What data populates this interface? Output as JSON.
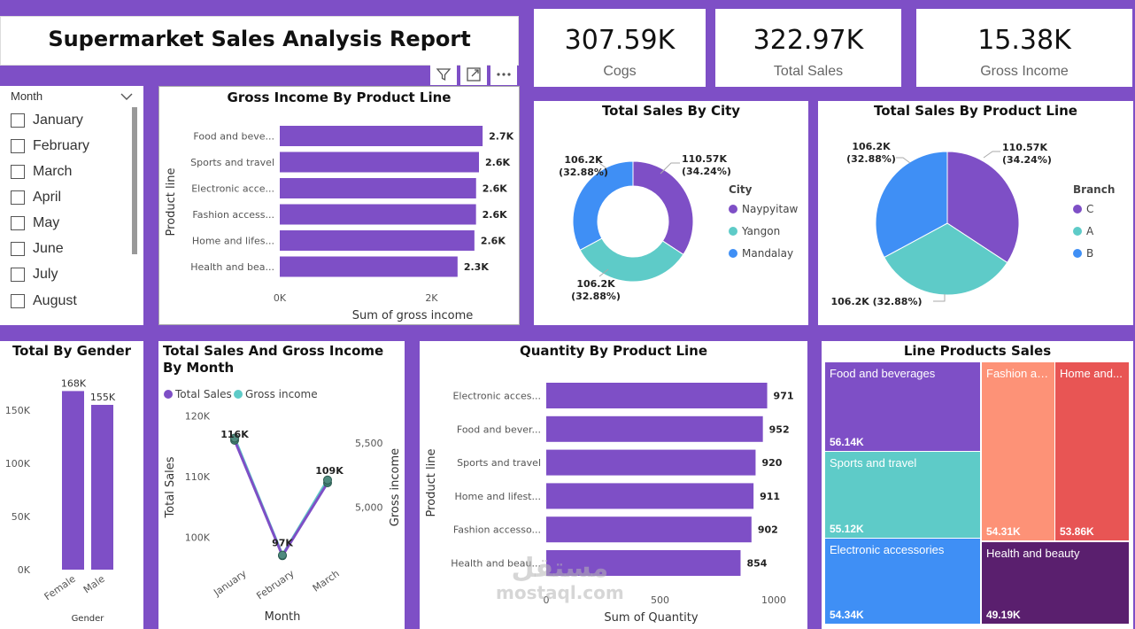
{
  "report_title": "Supermarket Sales Analysis Report",
  "kpis": [
    {
      "value": "307.59K",
      "label": "Cogs"
    },
    {
      "value": "322.97K",
      "label": "Total Sales"
    },
    {
      "value": "15.38K",
      "label": "Gross Income"
    }
  ],
  "slicer": {
    "header": "Month",
    "items": [
      "January",
      "February",
      "March",
      "April",
      "May",
      "June",
      "July",
      "August"
    ]
  },
  "icons": [
    "filter-icon",
    "focus-mode-icon",
    "more-options-icon",
    "chevron-down-icon"
  ],
  "colors": {
    "purple": "#7e4fc6",
    "teal": "#5ecbc8",
    "blue": "#3f8ff5",
    "salmon": "#fd9277",
    "red": "#e85554",
    "dark_purple": "#5a1f6e"
  },
  "chart_data": [
    {
      "id": "gross_income_by_product_line",
      "type": "bar",
      "orientation": "horizontal",
      "title": "Gross Income By Product Line",
      "xlabel": "Sum of gross income",
      "ylabel": "Product line",
      "categories": [
        "Food and beve...",
        "Sports and travel",
        "Electronic acce...",
        "Fashion access...",
        "Home and lifes...",
        "Health and bea..."
      ],
      "values": [
        2673,
        2625,
        2587,
        2586,
        2565,
        2343
      ],
      "data_labels": [
        "2.7K",
        "2.6K",
        "2.6K",
        "2.6K",
        "2.6K",
        "2.3K"
      ],
      "xticks": [
        "0K",
        "2K"
      ],
      "xlim": [
        0,
        3500
      ],
      "grid": false
    },
    {
      "id": "total_sales_by_city",
      "type": "pie",
      "variant": "donut",
      "title": "Total Sales By City",
      "legend_title": "City",
      "legend_position": "right",
      "labels": [
        "Naypyitaw",
        "Yangon",
        "Mandalay"
      ],
      "values": [
        110.57,
        106.2,
        106.2
      ],
      "data_labels": [
        "110.57K (34.24%)",
        "106.2K (32.88%)",
        "106.2K (32.88%)"
      ]
    },
    {
      "id": "total_sales_by_product_line",
      "type": "pie",
      "title": "Total Sales By Product Line",
      "legend_title": "Branch",
      "legend_position": "right",
      "labels": [
        "C",
        "A",
        "B"
      ],
      "values": [
        110.57,
        106.2,
        106.2
      ],
      "data_labels": [
        "110.57K (34.24%)",
        "106.2K (32.88%)",
        "106.2K (32.88%)"
      ]
    },
    {
      "id": "total_by_gender",
      "type": "bar",
      "title": "Total By Gender",
      "xlabel": "Gender",
      "categories": [
        "Female",
        "Male"
      ],
      "values": [
        168,
        155
      ],
      "data_labels": [
        "168K",
        "155K"
      ],
      "yticks": [
        "150K",
        "100K",
        "50K",
        "0K"
      ],
      "ylim": [
        0,
        180
      ],
      "grid": false
    },
    {
      "id": "sales_and_gross_income_by_month",
      "type": "line",
      "title": "Total Sales And Gross Income By Month",
      "xlabel": "Month",
      "ylabel": "Total Sales",
      "ylabel2": "Gross income",
      "categories": [
        "January",
        "February",
        "March"
      ],
      "series": [
        {
          "name": "Total Sales",
          "values": [
            116,
            97,
            109
          ],
          "data_labels": [
            "116K",
            "97K",
            "109K"
          ]
        },
        {
          "name": "Gross income",
          "values": [
            5537,
            4629,
            5212
          ]
        }
      ],
      "yticks": [
        "120K",
        "110K",
        "100K"
      ],
      "ylim": [
        95,
        123
      ],
      "yticks2": [
        "5,500",
        "5,000"
      ],
      "ylim2": [
        4530,
        5850
      ],
      "legend_position": "top"
    },
    {
      "id": "quantity_by_product_line",
      "type": "bar",
      "orientation": "horizontal",
      "title": "Quantity By Product Line",
      "xlabel": "Sum of Quantity",
      "ylabel": "Product line",
      "categories": [
        "Electronic acces...",
        "Food and bever...",
        "Sports and travel",
        "Home and lifest...",
        "Fashion accesso...",
        "Health and beau..."
      ],
      "values": [
        971,
        952,
        920,
        911,
        902,
        854
      ],
      "data_labels": [
        "971",
        "952",
        "920",
        "911",
        "902",
        "854"
      ],
      "xticks": [
        "0",
        "500",
        "1000"
      ],
      "xlim": [
        0,
        1000
      ],
      "grid": false
    },
    {
      "id": "line_products_sales",
      "type": "treemap",
      "title": "Line Products Sales",
      "items": [
        {
          "name": "Food and beverages",
          "label": "Food and beverages",
          "value": 56.14,
          "value_label": "56.14K"
        },
        {
          "name": "Sports and travel",
          "label": "Sports and travel",
          "value": 55.12,
          "value_label": "55.12K"
        },
        {
          "name": "Electronic accessories",
          "label": "Electronic accessories",
          "value": 54.34,
          "value_label": "54.34K"
        },
        {
          "name": "Fashion accessories",
          "label": "Fashion ac...",
          "value": 54.31,
          "value_label": "54.31K"
        },
        {
          "name": "Home and lifestyle",
          "label": "Home and...",
          "value": 53.86,
          "value_label": "53.86K"
        },
        {
          "name": "Health and beauty",
          "label": "Health and beauty",
          "value": 49.19,
          "value_label": "49.19K"
        }
      ]
    }
  ],
  "watermark": {
    "arabic": "مستقل",
    "latin": "mostaql.com"
  }
}
